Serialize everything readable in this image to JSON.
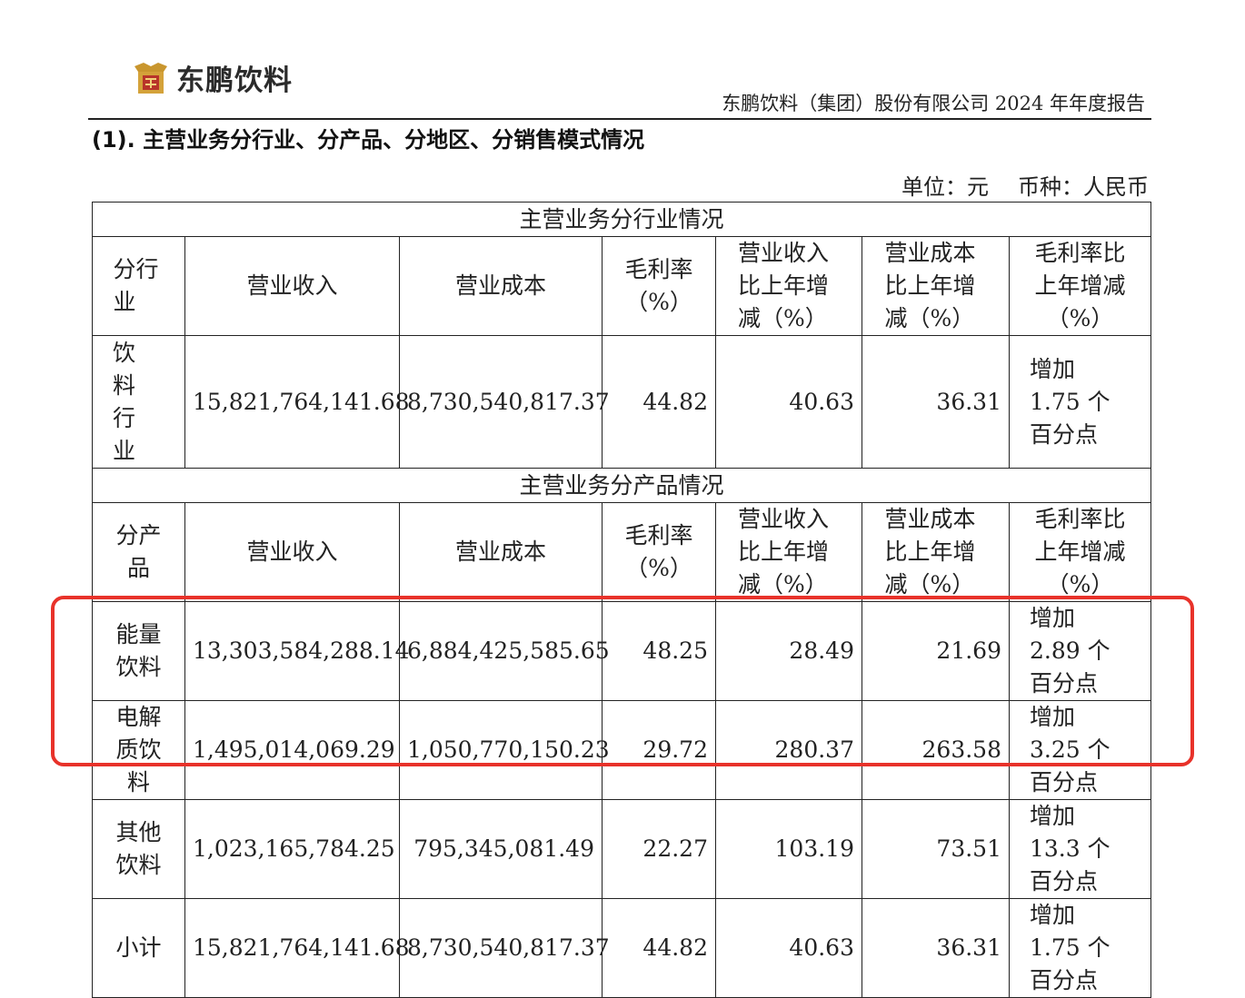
{
  "header": {
    "logo_text": "东鹏饮料",
    "logo_icon": "dongpeng-logo-icon",
    "report_title": "东鹏饮料（集团）股份有限公司 2024 年年度报告"
  },
  "section_heading": "(1). 主营业务分行业、分产品、分地区、分销售模式情况",
  "unit": {
    "unit": "单位：元",
    "currency": "币种：人民币"
  },
  "table": {
    "industry_title": "主营业务分行业情况",
    "industry_headers": [
      "分行业",
      "营业收入",
      "营业成本",
      "毛利率（%）",
      "营业收入比上年增减（%）",
      "营业成本比上年增减（%）",
      "毛利率比上年增减（%）"
    ],
    "industry_rows": [
      {
        "name": "饮料行业",
        "revenue": "15,821,764,141.68",
        "cost": "8,730,540,817.37",
        "margin": "44.82",
        "rev_change": "40.63",
        "cost_change": "36.31",
        "margin_change": "增加 1.75 个百分点"
      }
    ],
    "product_title": "主营业务分产品情况",
    "product_headers": [
      "分产品",
      "营业收入",
      "营业成本",
      "毛利率（%）",
      "营业收入比上年增减（%）",
      "营业成本比上年增减（%）",
      "毛利率比上年增减（%）"
    ],
    "product_rows": [
      {
        "name": "能量饮料",
        "revenue": "13,303,584,288.14",
        "cost": "6,884,425,585.65",
        "margin": "48.25",
        "rev_change": "28.49",
        "cost_change": "21.69",
        "margin_change": "增加 2.89 个百分点"
      },
      {
        "name": "电解质饮料",
        "revenue": "1,495,014,069.29",
        "cost": "1,050,770,150.23",
        "margin": "29.72",
        "rev_change": "280.37",
        "cost_change": "263.58",
        "margin_change": "增加 3.25 个百分点"
      },
      {
        "name": "其他饮料",
        "revenue": "1,023,165,784.25",
        "cost": "795,345,081.49",
        "margin": "22.27",
        "rev_change": "103.19",
        "cost_change": "73.51",
        "margin_change": "增加 13.3 个百分点"
      },
      {
        "name": "小计",
        "revenue": "15,821,764,141.68",
        "cost": "8,730,540,817.37",
        "margin": "44.82",
        "rev_change": "40.63",
        "cost_change": "36.31",
        "margin_change": "增加 1.75 个百分点"
      }
    ]
  },
  "highlight_color": "#e8322a"
}
